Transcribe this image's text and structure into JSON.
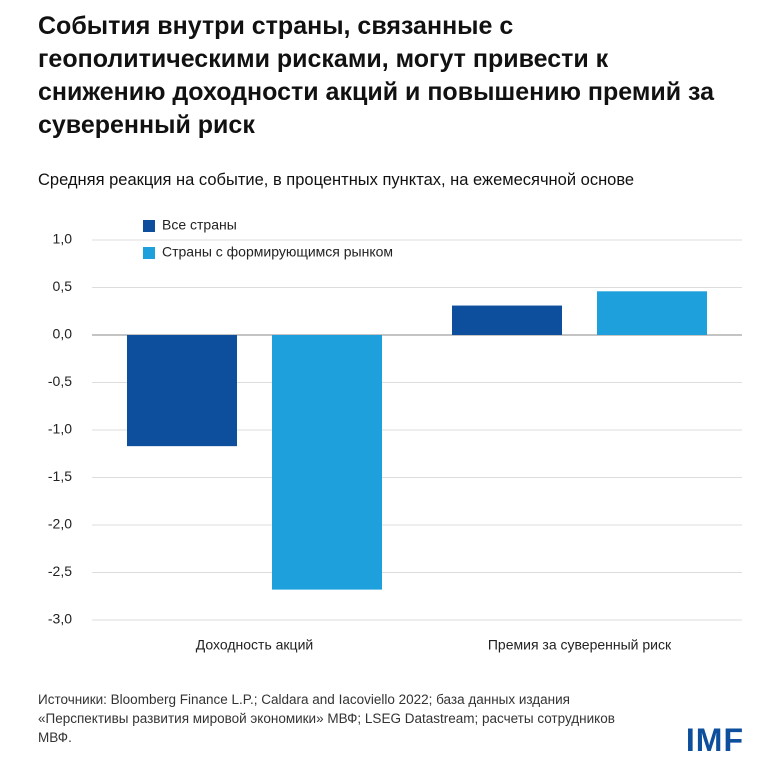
{
  "chart_data": {
    "type": "bar",
    "title": "События внутри страны, связанные с геополитическими рисками, могут привести к снижению доходности акций и повышению премий за суверенный риск",
    "subtitle": "Средняя реакция на событие, в процентных пунктах, на ежемесячной основе",
    "categories": [
      "Доходность акций",
      "Премия за суверенный риск"
    ],
    "series": [
      {
        "name": "Все страны",
        "color": "#0d4f9c",
        "values": [
          -1.17,
          0.31
        ]
      },
      {
        "name": "Страны с формирующимся рынком",
        "color": "#1ea0dc",
        "values": [
          -2.68,
          0.46
        ]
      }
    ],
    "ylim": [
      -3,
      1
    ],
    "yticks": [
      {
        "value": 1,
        "label": "1,0"
      },
      {
        "value": 0.5,
        "label": "0,5"
      },
      {
        "value": 0,
        "label": "0,0"
      },
      {
        "value": -0.5,
        "label": "-0,5"
      },
      {
        "value": -1,
        "label": "-1,0"
      },
      {
        "value": -1.5,
        "label": "-1,5"
      },
      {
        "value": -2,
        "label": "-2,0"
      },
      {
        "value": -2.5,
        "label": "-2,5"
      },
      {
        "value": -3,
        "label": "-3,0"
      }
    ],
    "grid": true,
    "legend_position": "top-left",
    "source": "Источники: Bloomberg Finance L.P.; Caldara and Iacoviello 2022; база данных издания «Перспективы развития мировой экономики» МВФ; LSEG Datastream; расчеты сотрудников МВФ.",
    "logo": "IMF"
  }
}
